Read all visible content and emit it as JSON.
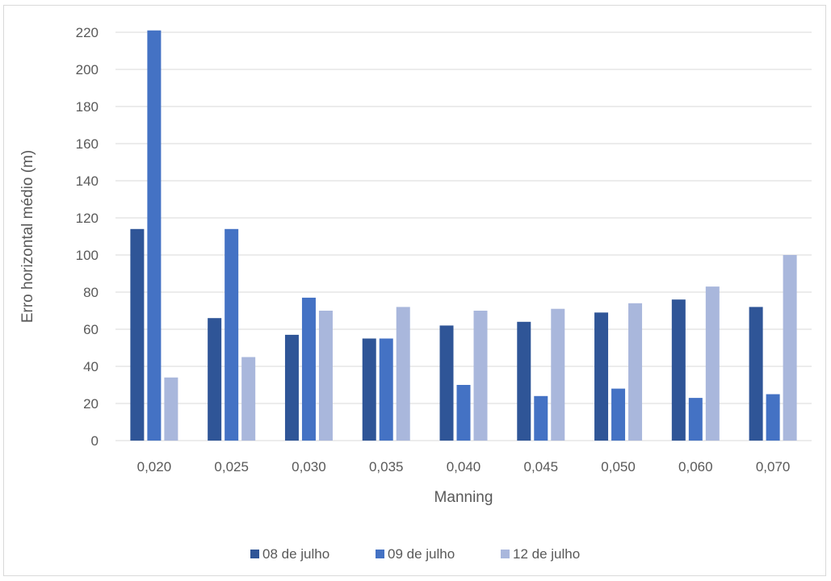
{
  "chart_data": {
    "type": "bar",
    "title": "",
    "xlabel": "Manning",
    "ylabel": "Erro horizontal médio (m)",
    "ylim": [
      0,
      220
    ],
    "yticks": [
      "0",
      "20",
      "40",
      "60",
      "80",
      "100",
      "120",
      "140",
      "160",
      "180",
      "200",
      "220"
    ],
    "categories": [
      "0,020",
      "0,025",
      "0,030",
      "0,035",
      "0,040",
      "0,045",
      "0,050",
      "0,060",
      "0,070"
    ],
    "series": [
      {
        "name": "08 de julho",
        "color": "#2f5597",
        "values": [
          114,
          66,
          57,
          55,
          62,
          64,
          69,
          76,
          72
        ]
      },
      {
        "name": "09 de julho",
        "color": "#4472c4",
        "values": [
          221,
          114,
          77,
          55,
          30,
          24,
          28,
          23,
          25
        ]
      },
      {
        "name": "12 de julho",
        "color": "#a9b7dc",
        "values": [
          34,
          45,
          70,
          72,
          70,
          71,
          74,
          83,
          100
        ]
      }
    ],
    "grid": true,
    "legend_position": "bottom"
  }
}
